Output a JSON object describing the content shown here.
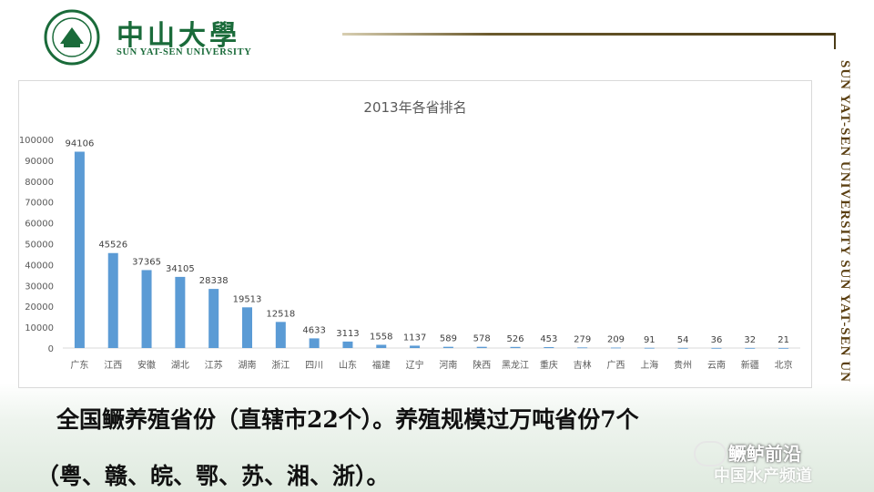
{
  "header": {
    "university_name": "中山大學",
    "university_sub": "SUN YAT-SEN UNIVERSITY",
    "seal_name": "sun-yat-sen-university-seal"
  },
  "side_text": "SUN YAT-SEN UNIVERSITY   SUN YAT-SEN UNIVERSITY",
  "chart_data": {
    "type": "bar",
    "title": "2013年各省排名",
    "xlabel": "",
    "ylabel": "",
    "categories": [
      "广东",
      "江西",
      "安徽",
      "湖北",
      "江苏",
      "湖南",
      "浙江",
      "四川",
      "山东",
      "福建",
      "辽宁",
      "河南",
      "陕西",
      "黑龙江",
      "重庆",
      "吉林",
      "广西",
      "上海",
      "贵州",
      "云南",
      "新疆",
      "北京"
    ],
    "values": [
      94106,
      45526,
      37365,
      34105,
      28338,
      19513,
      12518,
      4633,
      3113,
      1558,
      1137,
      589,
      578,
      526,
      453,
      279,
      209,
      91,
      54,
      36,
      32,
      21
    ],
    "ylim": [
      0,
      100000
    ],
    "yticks": [
      0,
      10000,
      20000,
      30000,
      40000,
      50000,
      60000,
      70000,
      80000,
      90000,
      100000
    ],
    "grid": false,
    "bar_color": "#5b9bd5",
    "data_labels": true
  },
  "caption": {
    "line1": "全国鳜养殖省份（直辖市22个）。养殖规模过万吨省份7个",
    "line2": "（粤、赣、皖、鄂、苏、湘、浙）。"
  },
  "watermark": {
    "text": "鳜鲈前沿",
    "sub": "中国水产频道",
    "icon": "wechat-icon"
  }
}
